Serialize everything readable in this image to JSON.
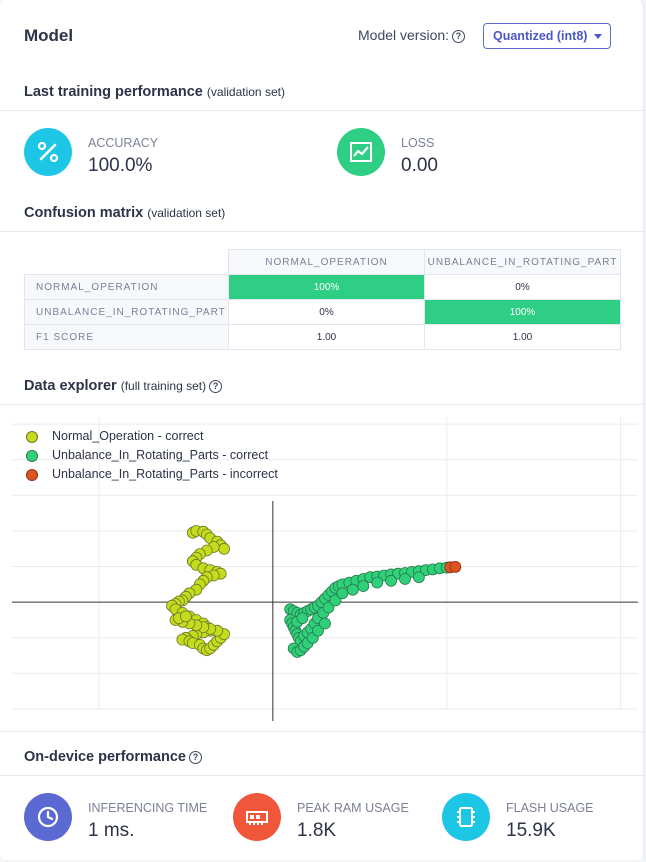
{
  "header": {
    "title": "Model",
    "version_label": "Model version:",
    "version_selected": "Quantized (int8)"
  },
  "training": {
    "title": "Last training performance",
    "subtitle": "(validation set)",
    "accuracy": {
      "label": "ACCURACY",
      "value": "100.0%",
      "icon": "percent-icon",
      "color": "#1ec6e6"
    },
    "loss": {
      "label": "LOSS",
      "value": "0.00",
      "icon": "chart-line-icon",
      "color": "#2fce85"
    }
  },
  "confusion": {
    "title": "Confusion matrix",
    "subtitle": "(validation set)",
    "columns": [
      "NORMAL_OPERATION",
      "UNBALANCE_IN_ROTATING_PART"
    ],
    "rows": [
      {
        "label": "NORMAL_OPERATION",
        "cells": [
          "100%",
          "0%"
        ]
      },
      {
        "label": "UNBALANCE_IN_ROTATING_PART",
        "cells": [
          "0%",
          "100%"
        ]
      },
      {
        "label": "F1 SCORE",
        "cells": [
          "1.00",
          "1.00"
        ]
      }
    ]
  },
  "explorer": {
    "title": "Data explorer",
    "subtitle": "(full training set)",
    "legend": [
      {
        "label": "Normal_Operation - correct",
        "color": "#c5dc1c"
      },
      {
        "label": "Unbalance_In_Rotating_Parts - correct",
        "color": "#2fd07a"
      },
      {
        "label": "Unbalance_In_Rotating_Parts - incorrect",
        "color": "#de5420"
      }
    ]
  },
  "chart_data": {
    "type": "scatter",
    "title": "",
    "xlabel": "",
    "ylabel": "",
    "grid": true,
    "legend_position": "top-left",
    "series": [
      {
        "name": "Normal_Operation - correct",
        "color": "#c5dc1c",
        "x": [
          -2.3,
          -2.2,
          -2.0,
          -1.9,
          -1.8,
          -1.6,
          -1.5,
          -1.4,
          -1.7,
          -1.9,
          -2.1,
          -2.2,
          -2.3,
          -2.2,
          -2.0,
          -1.8,
          -1.6,
          -1.5,
          -1.7,
          -1.9,
          -2.0,
          -2.1,
          -2.2,
          -2.4,
          -2.5,
          -2.6,
          -2.7,
          -2.8,
          -2.9,
          -2.8,
          -2.6,
          -2.4,
          -2.2,
          -2.0,
          -1.9,
          -1.8,
          -2.0,
          -2.2,
          -2.3,
          -2.5,
          -2.6,
          -2.4,
          -2.3,
          -2.1,
          -2.0,
          -1.9,
          -1.8,
          -1.7,
          -1.6,
          -1.5,
          -1.4,
          -1.6,
          -1.8,
          -2.0,
          -2.2,
          -2.4,
          -2.6,
          -2.8,
          -2.7,
          -2.5
        ],
        "y": [
          1.95,
          2.0,
          1.98,
          1.9,
          1.8,
          1.7,
          1.6,
          1.5,
          1.55,
          1.45,
          1.35,
          1.25,
          1.15,
          1.05,
          0.95,
          0.9,
          0.85,
          0.8,
          0.75,
          0.7,
          0.6,
          0.5,
          0.35,
          0.25,
          0.15,
          0.05,
          0.02,
          -0.05,
          -0.1,
          -0.2,
          -0.3,
          -0.4,
          -0.5,
          -0.6,
          -0.7,
          -0.8,
          -0.85,
          -0.9,
          -0.95,
          -1.0,
          -1.05,
          -1.1,
          -1.15,
          -1.2,
          -1.3,
          -1.35,
          -1.3,
          -1.2,
          -1.1,
          -1.0,
          -0.9,
          -0.8,
          -0.75,
          -0.7,
          -0.65,
          -0.6,
          -0.55,
          -0.5,
          -0.45,
          -0.4
        ]
      },
      {
        "name": "Unbalance_In_Rotating_Parts - correct",
        "color": "#2fd07a",
        "x": [
          0.5,
          0.6,
          0.7,
          0.8,
          0.9,
          1.0,
          1.1,
          1.2,
          1.3,
          1.4,
          1.5,
          1.6,
          1.7,
          1.8,
          1.9,
          2.0,
          2.2,
          2.4,
          2.6,
          2.8,
          3.0,
          3.2,
          3.4,
          3.6,
          3.8,
          4.0,
          4.2,
          4.4,
          4.6,
          4.8,
          5.0,
          0.5,
          0.55,
          0.6,
          0.65,
          0.7,
          0.75,
          0.8,
          0.9,
          1.0,
          1.1,
          1.2,
          1.3,
          1.45,
          1.6,
          1.8,
          2.0,
          2.3,
          2.6,
          3.0,
          3.4,
          3.8,
          4.2,
          0.6,
          0.7,
          0.8,
          0.9,
          1.0,
          1.15,
          1.3,
          1.5,
          0.7,
          0.85
        ],
        "y": [
          -0.2,
          -0.25,
          -0.3,
          -0.35,
          -0.3,
          -0.25,
          -0.2,
          -0.15,
          -0.1,
          0.0,
          0.1,
          0.2,
          0.3,
          0.4,
          0.45,
          0.5,
          0.55,
          0.6,
          0.65,
          0.7,
          0.72,
          0.75,
          0.78,
          0.8,
          0.82,
          0.85,
          0.87,
          0.9,
          0.92,
          0.95,
          0.97,
          -0.5,
          -0.6,
          -0.7,
          -0.8,
          -0.9,
          -1.0,
          -1.1,
          -0.95,
          -0.85,
          -0.75,
          -0.6,
          -0.45,
          -0.3,
          -0.15,
          0.05,
          0.25,
          0.35,
          0.45,
          0.55,
          0.6,
          0.65,
          0.7,
          -1.3,
          -1.4,
          -1.35,
          -1.25,
          -1.15,
          -1.0,
          -0.8,
          -0.6,
          -0.55,
          -0.45
        ]
      },
      {
        "name": "Unbalance_In_Rotating_Parts - incorrect",
        "color": "#de5420",
        "x": [
          5.1,
          5.25
        ],
        "y": [
          0.98,
          0.99
        ]
      }
    ],
    "xlim": [
      -7.5,
      10.5
    ],
    "ylim": [
      -3,
      5.2
    ]
  },
  "ondevice": {
    "title": "On-device performance",
    "metrics": [
      {
        "label": "INFERENCING TIME",
        "value": "1 ms.",
        "icon": "clock-icon",
        "color": "#5b6ad3"
      },
      {
        "label": "PEAK RAM USAGE",
        "value": "1.8K",
        "icon": "memory-icon",
        "color": "#f0573a"
      },
      {
        "label": "FLASH USAGE",
        "value": "15.9K",
        "icon": "chip-icon",
        "color": "#1ec6e6"
      }
    ]
  }
}
